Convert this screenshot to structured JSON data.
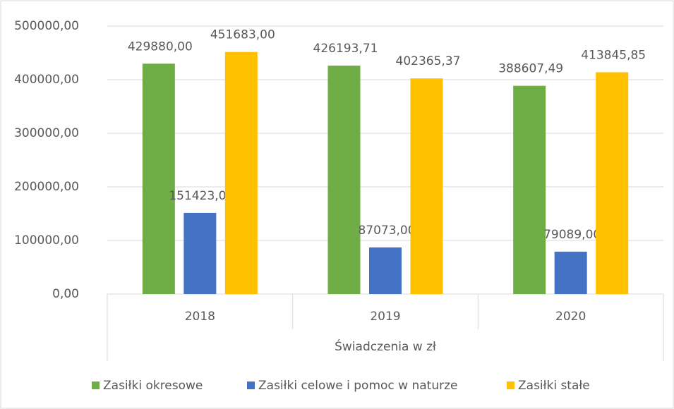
{
  "chart_data": {
    "type": "bar",
    "x_label": "Świadczenia w zł",
    "categories": [
      "2018",
      "2019",
      "2020"
    ],
    "series": [
      {
        "name": "Zasiłki okresowe",
        "color": "#70ad47",
        "values": [
          429880.0,
          426193.71,
          388607.49
        ],
        "value_labels": [
          "429880,00",
          "426193,71",
          "388607,49"
        ]
      },
      {
        "name": "Zasiłki celowe i pomoc w naturze",
        "color": "#4472c4",
        "values": [
          151423.0,
          87073.0,
          79089.0
        ],
        "value_labels": [
          "151423,00",
          "87073,00",
          "79089,00"
        ]
      },
      {
        "name": "Zasiłki stałe",
        "color": "#ffc000",
        "values": [
          451683.0,
          402365.37,
          413845.85
        ],
        "value_labels": [
          "451683,00",
          "402365,37",
          "413845,85"
        ]
      }
    ],
    "ylim": [
      0,
      500000
    ],
    "yticks": [
      {
        "value": 0,
        "label": "0,00"
      },
      {
        "value": 100000,
        "label": "100000,00"
      },
      {
        "value": 200000,
        "label": "200000,00"
      },
      {
        "value": 300000,
        "label": "300000,00"
      },
      {
        "value": 400000,
        "label": "400000,00"
      },
      {
        "value": 500000,
        "label": "500000,00"
      }
    ],
    "grid": true,
    "legend": "bottom"
  }
}
